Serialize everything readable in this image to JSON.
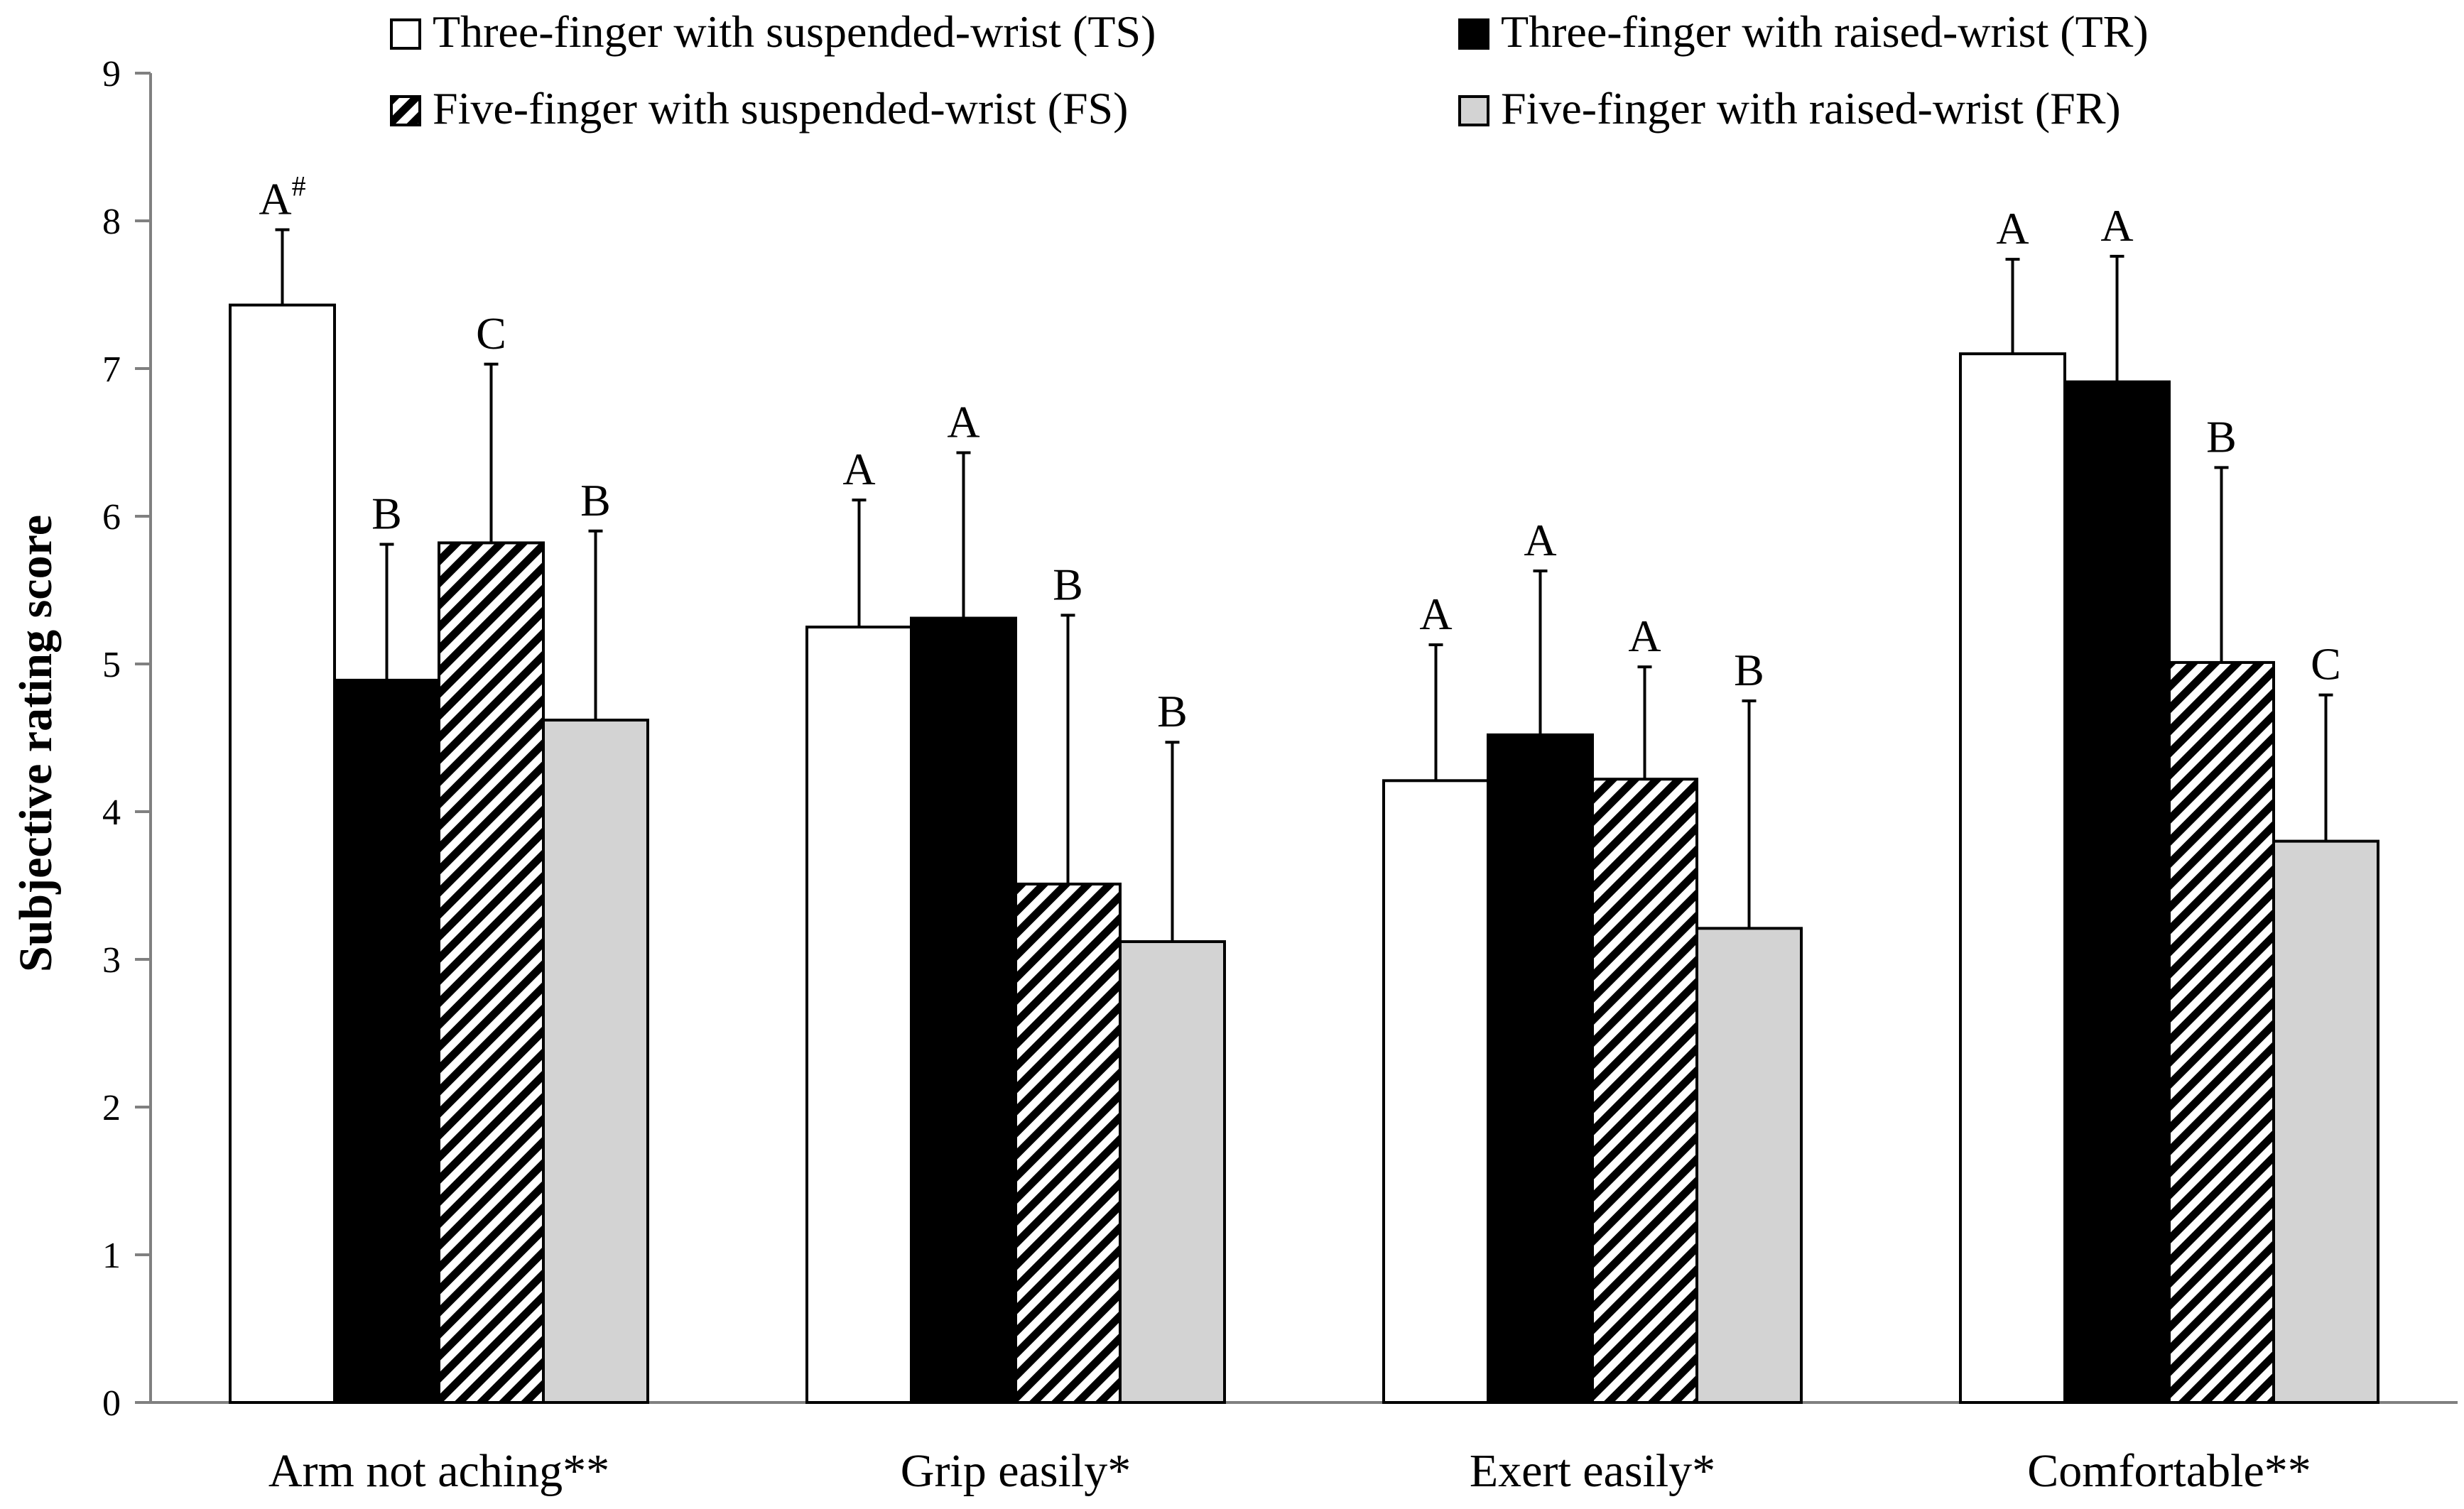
{
  "chart_data": {
    "type": "bar",
    "title": "",
    "xlabel": "",
    "ylabel": "Subjective rating score",
    "ylim": [
      0,
      9
    ],
    "yticks": [
      0,
      1,
      2,
      3,
      4,
      5,
      6,
      7,
      8,
      9
    ],
    "grid": false,
    "legend_position": "top",
    "categories": [
      "Arm not aching**",
      "Grip easily*",
      "Exert easily*",
      "Comfortable**"
    ],
    "series": [
      {
        "name": "Three-finger with suspended-wrist (TS)",
        "fill": "white",
        "values": [
          7.43,
          5.25,
          4.21,
          7.1
        ],
        "errors": [
          0.51,
          0.86,
          0.92,
          0.64
        ],
        "letters": [
          "A",
          "A",
          "A",
          "A"
        ],
        "superscripts": [
          "#",
          "",
          "",
          ""
        ]
      },
      {
        "name": "Three-finger with raised-wrist (TR)",
        "fill": "black",
        "values": [
          4.89,
          5.31,
          4.52,
          6.91
        ],
        "errors": [
          0.92,
          1.12,
          1.11,
          0.85
        ],
        "letters": [
          "B",
          "A",
          "A",
          "A"
        ],
        "superscripts": [
          "",
          "",
          "",
          ""
        ]
      },
      {
        "name": "Five-finger with suspended-wrist (FS)",
        "fill": "hatch",
        "values": [
          5.82,
          3.51,
          4.22,
          5.01
        ],
        "errors": [
          1.21,
          1.82,
          0.76,
          1.32
        ],
        "letters": [
          "C",
          "B",
          "A",
          "B"
        ],
        "superscripts": [
          "",
          "",
          "",
          ""
        ]
      },
      {
        "name": "Five-finger with raised-wrist (FR)",
        "fill": "gray",
        "values": [
          4.62,
          3.12,
          3.21,
          3.8
        ],
        "errors": [
          1.28,
          1.35,
          1.54,
          0.99
        ],
        "letters": [
          "B",
          "B",
          "B",
          "C"
        ],
        "superscripts": [
          "",
          "",
          "",
          ""
        ]
      }
    ]
  },
  "colors": {
    "axis": "#808080",
    "gray_fill": "#d3d3d3",
    "black_fill": "#000000",
    "white_fill": "#ffffff"
  }
}
